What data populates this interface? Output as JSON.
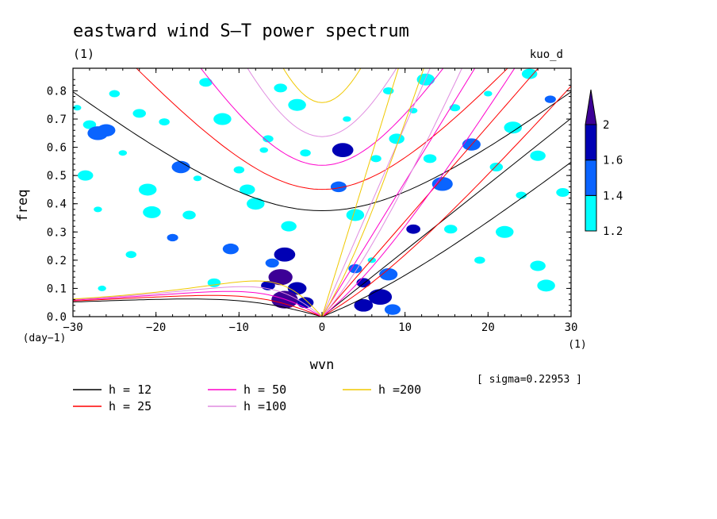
{
  "chart_data": {
    "type": "contour",
    "title": "eastward wind S–T power spectrum",
    "subtitle_left": "(1)",
    "subtitle_right": "kuo_d",
    "xlabel": "wvn",
    "ylabel": "freq",
    "x_unit_label": "(1)",
    "y_unit_label": "(day−1)",
    "sigma_label": "[ sigma=0.22953 ]",
    "xlim": [
      -30,
      30
    ],
    "ylim": [
      0,
      0.88
    ],
    "x_ticks": [
      -30,
      -20,
      -10,
      0,
      10,
      20,
      30
    ],
    "x_tick_labels": [
      "−30",
      "−20",
      "−10",
      "0",
      "10",
      "20",
      "30"
    ],
    "y_ticks": [
      0,
      0.1,
      0.2,
      0.3,
      0.4,
      0.5,
      0.6,
      0.7,
      0.8
    ],
    "y_tick_labels": [
      "0.0",
      "0.1",
      "0.2",
      "0.3",
      "0.4",
      "0.5",
      "0.6",
      "0.7",
      "0.8"
    ],
    "colorbar": {
      "levels": [
        1.2,
        1.4,
        1.6,
        2
      ],
      "level_labels": [
        "1.2",
        "1.4",
        "1.6",
        "2"
      ],
      "colors": [
        "#00ffff",
        "#0a64ff",
        "#0000b4",
        "#3c0096"
      ]
    },
    "dispersion_curves": [
      {
        "name": "h = 12",
        "h": 12,
        "color": "#000000"
      },
      {
        "name": "h = 25",
        "h": 25,
        "color": "#ff0000"
      },
      {
        "name": "h = 50",
        "h": 50,
        "color": "#ff00cc"
      },
      {
        "name": "h =100",
        "h": 100,
        "color": "#e08ce0"
      },
      {
        "name": "h =200",
        "h": 200,
        "color": "#f0c800"
      }
    ],
    "spectral_patches": [
      {
        "x": -29.5,
        "y": 0.74,
        "level": 0
      },
      {
        "x": -28,
        "y": 0.68,
        "level": 0
      },
      {
        "x": -27,
        "y": 0.65,
        "level": 1
      },
      {
        "x": -25,
        "y": 0.79,
        "level": 0
      },
      {
        "x": -26,
        "y": 0.66,
        "level": 1
      },
      {
        "x": -24,
        "y": 0.58,
        "level": 0
      },
      {
        "x": -22,
        "y": 0.72,
        "level": 0
      },
      {
        "x": -21,
        "y": 0.45,
        "level": 0
      },
      {
        "x": -19,
        "y": 0.69,
        "level": 0
      },
      {
        "x": -17,
        "y": 0.53,
        "level": 1
      },
      {
        "x": -15,
        "y": 0.49,
        "level": 0
      },
      {
        "x": -14,
        "y": 0.83,
        "level": 0
      },
      {
        "x": -12,
        "y": 0.7,
        "level": 0
      },
      {
        "x": -10,
        "y": 0.52,
        "level": 0
      },
      {
        "x": -9,
        "y": 0.45,
        "level": 0
      },
      {
        "x": -7,
        "y": 0.59,
        "level": 0
      },
      {
        "x": -5,
        "y": 0.81,
        "level": 0
      },
      {
        "x": -3,
        "y": 0.75,
        "level": 0
      },
      {
        "x": -6.5,
        "y": 0.63,
        "level": 0
      },
      {
        "x": -4,
        "y": 0.32,
        "level": 0
      },
      {
        "x": -18,
        "y": 0.28,
        "level": 1
      },
      {
        "x": -16,
        "y": 0.36,
        "level": 0
      },
      {
        "x": -20.5,
        "y": 0.37,
        "level": 0
      },
      {
        "x": -23,
        "y": 0.22,
        "level": 0
      },
      {
        "x": -28.5,
        "y": 0.5,
        "level": 0
      },
      {
        "x": -27,
        "y": 0.38,
        "level": 0
      },
      {
        "x": -11,
        "y": 0.24,
        "level": 1
      },
      {
        "x": -8,
        "y": 0.4,
        "level": 0
      },
      {
        "x": -2,
        "y": 0.58,
        "level": 0
      },
      {
        "x": 2.5,
        "y": 0.59,
        "level": 2
      },
      {
        "x": 3,
        "y": 0.7,
        "level": 0
      },
      {
        "x": 2,
        "y": 0.46,
        "level": 1
      },
      {
        "x": 4,
        "y": 0.36,
        "level": 0
      },
      {
        "x": 6.5,
        "y": 0.56,
        "level": 0
      },
      {
        "x": 9,
        "y": 0.63,
        "level": 0
      },
      {
        "x": 11,
        "y": 0.73,
        "level": 0
      },
      {
        "x": 13,
        "y": 0.56,
        "level": 0
      },
      {
        "x": 14.5,
        "y": 0.47,
        "level": 1
      },
      {
        "x": 16,
        "y": 0.74,
        "level": 0
      },
      {
        "x": 18,
        "y": 0.61,
        "level": 1
      },
      {
        "x": 20,
        "y": 0.79,
        "level": 0
      },
      {
        "x": 21,
        "y": 0.53,
        "level": 0
      },
      {
        "x": 23,
        "y": 0.67,
        "level": 0
      },
      {
        "x": 24,
        "y": 0.43,
        "level": 0
      },
      {
        "x": 26,
        "y": 0.57,
        "level": 0
      },
      {
        "x": 27.5,
        "y": 0.77,
        "level": 1
      },
      {
        "x": 29,
        "y": 0.44,
        "level": 0
      },
      {
        "x": 22,
        "y": 0.3,
        "level": 0
      },
      {
        "x": 19,
        "y": 0.2,
        "level": 0
      },
      {
        "x": 26,
        "y": 0.18,
        "level": 0
      },
      {
        "x": 11,
        "y": 0.31,
        "level": 2
      },
      {
        "x": 15.5,
        "y": 0.31,
        "level": 0
      },
      {
        "x": 12.5,
        "y": 0.84,
        "level": 0
      },
      {
        "x": 8,
        "y": 0.8,
        "level": 0
      },
      {
        "x": 25,
        "y": 0.86,
        "level": 0
      },
      {
        "x": -26.5,
        "y": 0.1,
        "level": 0
      },
      {
        "x": -13,
        "y": 0.12,
        "level": 0
      },
      {
        "x": 27,
        "y": 0.11,
        "level": 0
      },
      {
        "x": -6,
        "y": 0.19,
        "level": 1
      },
      {
        "x": -4.5,
        "y": 0.22,
        "level": 2
      },
      {
        "x": -6.5,
        "y": 0.11,
        "level": 2
      },
      {
        "x": -3,
        "y": 0.1,
        "level": 2
      },
      {
        "x": -4.5,
        "y": 0.06,
        "level": 3
      },
      {
        "x": -2,
        "y": 0.05,
        "level": 2
      },
      {
        "x": -5,
        "y": 0.14,
        "level": 3
      },
      {
        "x": 5,
        "y": 0.12,
        "level": 2
      },
      {
        "x": 5,
        "y": 0.04,
        "level": 2
      },
      {
        "x": 7,
        "y": 0.07,
        "level": 2
      },
      {
        "x": 4,
        "y": 0.17,
        "level": 1
      },
      {
        "x": 8,
        "y": 0.15,
        "level": 1
      },
      {
        "x": 6,
        "y": 0.2,
        "level": 0
      },
      {
        "x": 8.5,
        "y": 0.025,
        "level": 1
      }
    ]
  }
}
